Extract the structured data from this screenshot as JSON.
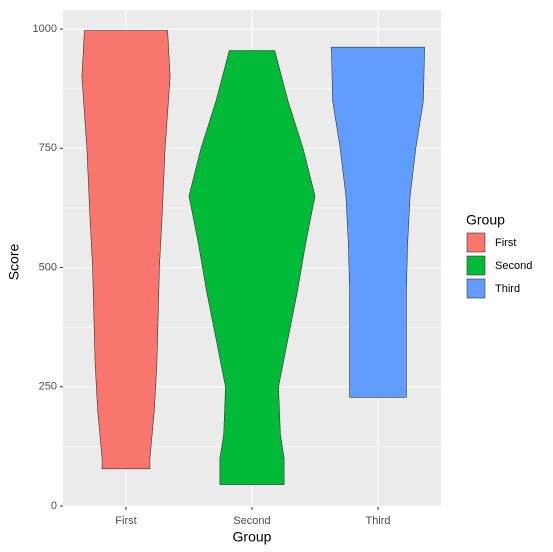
{
  "chart_data": {
    "type": "violin",
    "x_label": "Group",
    "y_label": "Score",
    "legend_title": "Group",
    "categories": [
      "First",
      "Second",
      "Third"
    ],
    "series": [
      {
        "name": "First",
        "color": "#f8766d",
        "shape_y": [
          997,
          900,
          750,
          600,
          500,
          300,
          200,
          100,
          78
        ],
        "shape_width": [
          0.66,
          0.7,
          0.62,
          0.57,
          0.53,
          0.49,
          0.45,
          0.38,
          0.38
        ]
      },
      {
        "name": "Second",
        "color": "#00ba38",
        "shape_y": [
          955,
          850,
          750,
          650,
          550,
          450,
          350,
          250,
          150,
          100,
          45
        ],
        "shape_width": [
          0.36,
          0.57,
          0.81,
          1.0,
          0.85,
          0.72,
          0.57,
          0.42,
          0.45,
          0.51,
          0.51
        ]
      },
      {
        "name": "Third",
        "color": "#619cff",
        "shape_y": [
          962,
          850,
          750,
          650,
          550,
          450,
          350,
          228
        ],
        "shape_width": [
          0.74,
          0.72,
          0.6,
          0.51,
          0.47,
          0.45,
          0.45,
          0.45
        ]
      }
    ],
    "ylim": [
      -2,
      1040
    ],
    "yticks": [
      0,
      250,
      500,
      750,
      1000
    ],
    "y_minor_ticks": [
      125,
      375,
      625,
      875
    ],
    "grid": true,
    "legend": "right"
  }
}
